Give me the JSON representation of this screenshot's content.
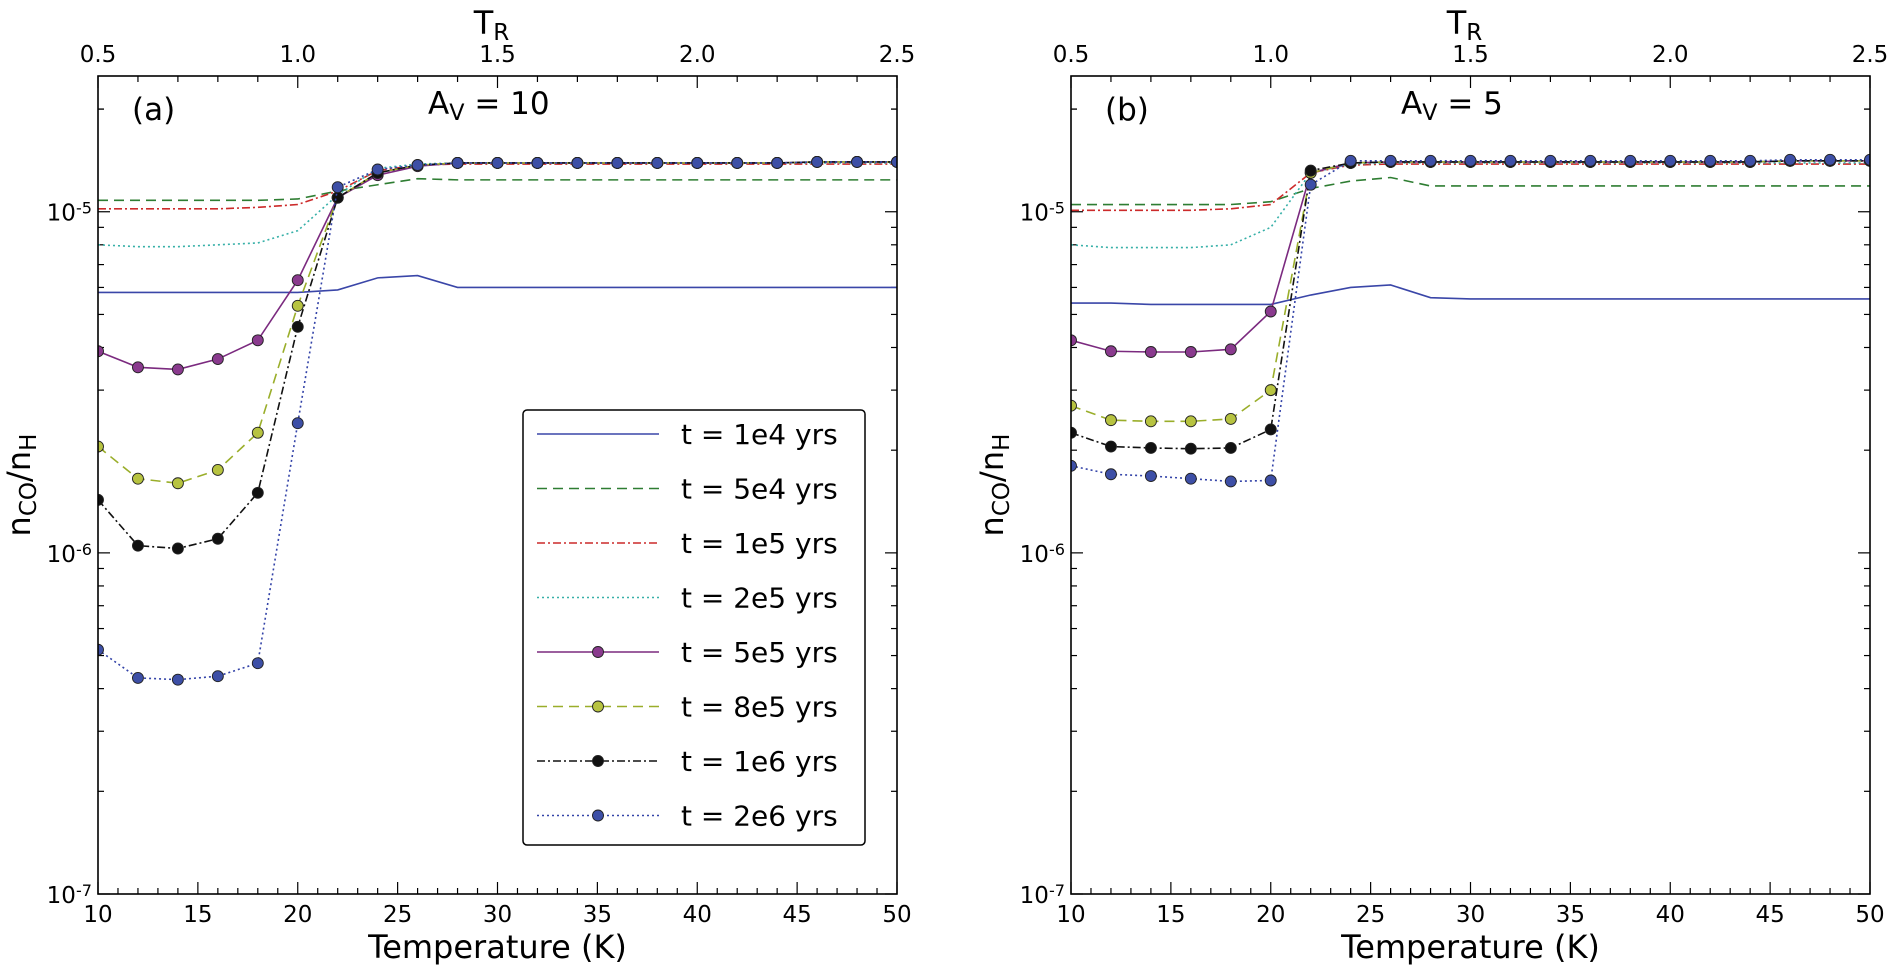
{
  "chart_data": [
    {
      "type": "line",
      "panel_label": "(a)",
      "title": "A",
      "title_sub": "V",
      "title_value": " = 10",
      "xlabel": "Temperature (K)",
      "ylabel_main1": "n",
      "ylabel_sub1": "CO",
      "ylabel_slash": "/n",
      "ylabel_sub2": "H",
      "top_xlabel": "T",
      "top_xlabel_sub": "R",
      "xlim": [
        10,
        50
      ],
      "ylim": [
        1e-07,
        2.5e-05
      ],
      "yscale": "log",
      "x_ticks": [
        10,
        15,
        20,
        25,
        30,
        35,
        40,
        45,
        50
      ],
      "x_tick_labels": [
        "10",
        "15",
        "20",
        "25",
        "30",
        "35",
        "40",
        "45",
        "50"
      ],
      "top_ticks": [
        0.5,
        1.0,
        1.5,
        2.0,
        2.5
      ],
      "top_tick_labels": [
        "0.5",
        "1.0",
        "1.5",
        "2.0",
        "2.5"
      ],
      "y_tick_labels": [
        {
          "value": 1e-05,
          "base": "10",
          "exp": "-5"
        },
        {
          "value": 1e-06,
          "base": "10",
          "exp": "-6"
        },
        {
          "value": 1e-07,
          "base": "10",
          "exp": "-7"
        }
      ],
      "legend": {
        "position": "lower-right"
      },
      "series": [
        {
          "name": "t = 1e4 yrs",
          "color": "#3a46a8",
          "dash": "",
          "marker": false,
          "x": [
            10,
            12,
            14,
            16,
            18,
            20,
            22,
            24,
            26,
            28,
            30,
            32,
            34,
            36,
            38,
            40,
            42,
            44,
            46,
            48,
            50
          ],
          "y": [
            5.8e-06,
            5.8e-06,
            5.8e-06,
            5.8e-06,
            5.8e-06,
            5.8e-06,
            5.9e-06,
            6.4e-06,
            6.5e-06,
            6e-06,
            6e-06,
            6e-06,
            6e-06,
            6e-06,
            6e-06,
            6e-06,
            6e-06,
            6e-06,
            6e-06,
            6e-06,
            6e-06
          ]
        },
        {
          "name": "t = 5e4 yrs",
          "color": "#2e7d32",
          "dash": "10,6",
          "marker": false,
          "x": [
            10,
            12,
            14,
            16,
            18,
            20,
            22,
            24,
            26,
            28,
            30,
            32,
            34,
            36,
            38,
            40,
            42,
            44,
            46,
            48,
            50
          ],
          "y": [
            1.08e-05,
            1.08e-05,
            1.08e-05,
            1.08e-05,
            1.08e-05,
            1.09e-05,
            1.15e-05,
            1.2e-05,
            1.25e-05,
            1.24e-05,
            1.24e-05,
            1.24e-05,
            1.24e-05,
            1.24e-05,
            1.24e-05,
            1.24e-05,
            1.24e-05,
            1.24e-05,
            1.24e-05,
            1.24e-05,
            1.24e-05
          ]
        },
        {
          "name": "t = 1e5 yrs",
          "color": "#cc2a2a",
          "dash": "8,3,2,3",
          "marker": false,
          "x": [
            10,
            12,
            14,
            16,
            18,
            20,
            22,
            24,
            26,
            28,
            30,
            32,
            34,
            36,
            38,
            40,
            42,
            44,
            46,
            48,
            50
          ],
          "y": [
            1.02e-05,
            1.02e-05,
            1.02e-05,
            1.02e-05,
            1.03e-05,
            1.05e-05,
            1.15e-05,
            1.32e-05,
            1.37e-05,
            1.38e-05,
            1.38e-05,
            1.38e-05,
            1.38e-05,
            1.38e-05,
            1.38e-05,
            1.38e-05,
            1.38e-05,
            1.38e-05,
            1.38e-05,
            1.38e-05,
            1.38e-05
          ]
        },
        {
          "name": "t = 2e5 yrs",
          "color": "#37b0a8",
          "dash": "2,3",
          "marker": false,
          "x": [
            10,
            12,
            14,
            16,
            18,
            20,
            22,
            24,
            26,
            28,
            30,
            32,
            34,
            36,
            38,
            40,
            42,
            44,
            46,
            48,
            50
          ],
          "y": [
            8e-06,
            7.9e-06,
            7.9e-06,
            8e-06,
            8.1e-06,
            8.8e-06,
            1.12e-05,
            1.34e-05,
            1.38e-05,
            1.39e-05,
            1.39e-05,
            1.39e-05,
            1.39e-05,
            1.39e-05,
            1.39e-05,
            1.39e-05,
            1.39e-05,
            1.39e-05,
            1.39e-05,
            1.39e-05,
            1.39e-05
          ]
        },
        {
          "name": "t = 5e5 yrs",
          "color": "#7b2a7f",
          "dash": "",
          "marker": true,
          "mfill": "#8a3a8e",
          "x": [
            10,
            12,
            14,
            16,
            18,
            20,
            22,
            24,
            26,
            28,
            30,
            32,
            34,
            36,
            38,
            40,
            42,
            44,
            46,
            48,
            50
          ],
          "y": [
            3.9e-06,
            3.5e-06,
            3.45e-06,
            3.7e-06,
            4.2e-06,
            6.3e-06,
            1.1e-05,
            1.28e-05,
            1.36e-05,
            1.39e-05,
            1.39e-05,
            1.39e-05,
            1.39e-05,
            1.39e-05,
            1.39e-05,
            1.39e-05,
            1.39e-05,
            1.39e-05,
            1.4e-05,
            1.4e-05,
            1.4e-05
          ]
        },
        {
          "name": "t = 8e5 yrs",
          "color": "#9aae2a",
          "dash": "10,6",
          "marker": true,
          "mfill": "#b7c340",
          "x": [
            10,
            12,
            14,
            16,
            18,
            20,
            22,
            24,
            26,
            28,
            30,
            32,
            34,
            36,
            38,
            40,
            42,
            44,
            46,
            48,
            50
          ],
          "y": [
            2.05e-06,
            1.65e-06,
            1.6e-06,
            1.75e-06,
            2.25e-06,
            5.3e-06,
            1.1e-05,
            1.3e-05,
            1.37e-05,
            1.39e-05,
            1.39e-05,
            1.39e-05,
            1.39e-05,
            1.39e-05,
            1.39e-05,
            1.39e-05,
            1.39e-05,
            1.39e-05,
            1.4e-05,
            1.4e-05,
            1.4e-05
          ]
        },
        {
          "name": "t = 1e6 yrs",
          "color": "#111111",
          "dash": "8,3,2,3",
          "marker": true,
          "mfill": "#111111",
          "x": [
            10,
            12,
            14,
            16,
            18,
            20,
            22,
            24,
            26,
            28,
            30,
            32,
            34,
            36,
            38,
            40,
            42,
            44,
            46,
            48,
            50
          ],
          "y": [
            1.43e-06,
            1.05e-06,
            1.03e-06,
            1.1e-06,
            1.5e-06,
            4.6e-06,
            1.1e-05,
            1.3e-05,
            1.37e-05,
            1.39e-05,
            1.39e-05,
            1.39e-05,
            1.39e-05,
            1.39e-05,
            1.39e-05,
            1.39e-05,
            1.39e-05,
            1.39e-05,
            1.4e-05,
            1.4e-05,
            1.4e-05
          ]
        },
        {
          "name": "t = 2e6 yrs",
          "color": "#3343a8",
          "dash": "2,3",
          "marker": true,
          "mfill": "#3d4fa6",
          "x": [
            10,
            12,
            14,
            16,
            18,
            20,
            22,
            24,
            26,
            28,
            30,
            32,
            34,
            36,
            38,
            40,
            42,
            44,
            46,
            48,
            50
          ],
          "y": [
            5.2e-07,
            4.3e-07,
            4.25e-07,
            4.35e-07,
            4.75e-07,
            2.4e-06,
            1.18e-05,
            1.33e-05,
            1.37e-05,
            1.39e-05,
            1.39e-05,
            1.39e-05,
            1.39e-05,
            1.39e-05,
            1.39e-05,
            1.39e-05,
            1.39e-05,
            1.39e-05,
            1.4e-05,
            1.4e-05,
            1.4e-05
          ]
        }
      ]
    },
    {
      "type": "line",
      "panel_label": "(b)",
      "title": "A",
      "title_sub": "V",
      "title_value": " = 5",
      "xlabel": "Temperature (K)",
      "ylabel_main1": "n",
      "ylabel_sub1": "CO",
      "ylabel_slash": "/n",
      "ylabel_sub2": "H",
      "top_xlabel": "T",
      "top_xlabel_sub": "R",
      "xlim": [
        10,
        50
      ],
      "ylim": [
        1e-07,
        2.5e-05
      ],
      "yscale": "log",
      "x_ticks": [
        10,
        15,
        20,
        25,
        30,
        35,
        40,
        45,
        50
      ],
      "x_tick_labels": [
        "10",
        "15",
        "20",
        "25",
        "30",
        "35",
        "40",
        "45",
        "50"
      ],
      "top_ticks": [
        0.5,
        1.0,
        1.5,
        2.0,
        2.5
      ],
      "top_tick_labels": [
        "0.5",
        "1.0",
        "1.5",
        "2.0",
        "2.5"
      ],
      "y_tick_labels": [
        {
          "value": 1e-05,
          "base": "10",
          "exp": "-5"
        },
        {
          "value": 1e-06,
          "base": "10",
          "exp": "-6"
        },
        {
          "value": 1e-07,
          "base": "10",
          "exp": "-7"
        }
      ],
      "series": [
        {
          "name": "t = 1e4 yrs",
          "color": "#3a46a8",
          "dash": "",
          "marker": false,
          "x": [
            10,
            12,
            14,
            16,
            18,
            20,
            22,
            24,
            26,
            28,
            30,
            32,
            34,
            36,
            38,
            40,
            42,
            44,
            46,
            48,
            50
          ],
          "y": [
            5.4e-06,
            5.4e-06,
            5.35e-06,
            5.35e-06,
            5.35e-06,
            5.35e-06,
            5.7e-06,
            6e-06,
            6.1e-06,
            5.6e-06,
            5.55e-06,
            5.55e-06,
            5.55e-06,
            5.55e-06,
            5.55e-06,
            5.55e-06,
            5.55e-06,
            5.55e-06,
            5.55e-06,
            5.55e-06,
            5.55e-06
          ]
        },
        {
          "name": "t = 5e4 yrs",
          "color": "#2e7d32",
          "dash": "10,6",
          "marker": false,
          "x": [
            10,
            12,
            14,
            16,
            18,
            20,
            22,
            24,
            26,
            28,
            30,
            32,
            34,
            36,
            38,
            40,
            42,
            44,
            46,
            48,
            50
          ],
          "y": [
            1.05e-05,
            1.05e-05,
            1.05e-05,
            1.05e-05,
            1.05e-05,
            1.07e-05,
            1.17e-05,
            1.23e-05,
            1.26e-05,
            1.19e-05,
            1.19e-05,
            1.19e-05,
            1.19e-05,
            1.19e-05,
            1.19e-05,
            1.19e-05,
            1.19e-05,
            1.19e-05,
            1.19e-05,
            1.19e-05,
            1.19e-05
          ]
        },
        {
          "name": "t = 1e5 yrs",
          "color": "#cc2a2a",
          "dash": "8,3,2,3",
          "marker": false,
          "x": [
            10,
            12,
            14,
            16,
            18,
            20,
            22,
            24,
            26,
            28,
            30,
            32,
            34,
            36,
            38,
            40,
            42,
            44,
            46,
            48,
            50
          ],
          "y": [
            1.01e-05,
            1.01e-05,
            1.01e-05,
            1.01e-05,
            1.02e-05,
            1.05e-05,
            1.3e-05,
            1.37e-05,
            1.38e-05,
            1.38e-05,
            1.38e-05,
            1.38e-05,
            1.38e-05,
            1.38e-05,
            1.38e-05,
            1.38e-05,
            1.38e-05,
            1.38e-05,
            1.38e-05,
            1.38e-05,
            1.38e-05
          ]
        },
        {
          "name": "t = 2e5 yrs",
          "color": "#37b0a8",
          "dash": "2,3",
          "marker": false,
          "x": [
            10,
            12,
            14,
            16,
            18,
            20,
            22,
            24,
            26,
            28,
            30,
            32,
            34,
            36,
            38,
            40,
            42,
            44,
            46,
            48,
            50
          ],
          "y": [
            8e-06,
            7.85e-06,
            7.85e-06,
            7.85e-06,
            8e-06,
            9e-06,
            1.3e-05,
            1.38e-05,
            1.39e-05,
            1.39e-05,
            1.39e-05,
            1.39e-05,
            1.39e-05,
            1.39e-05,
            1.39e-05,
            1.39e-05,
            1.39e-05,
            1.39e-05,
            1.39e-05,
            1.39e-05,
            1.39e-05
          ]
        },
        {
          "name": "t = 5e5 yrs",
          "color": "#7b2a7f",
          "dash": "",
          "marker": true,
          "mfill": "#8a3a8e",
          "x": [
            10,
            12,
            14,
            16,
            18,
            20,
            22,
            24,
            26,
            28,
            30,
            32,
            34,
            36,
            38,
            40,
            42,
            44,
            46,
            48,
            50
          ],
          "y": [
            4.2e-06,
            3.9e-06,
            3.88e-06,
            3.88e-06,
            3.95e-06,
            5.1e-06,
            1.3e-05,
            1.39e-05,
            1.4e-05,
            1.4e-05,
            1.4e-05,
            1.4e-05,
            1.4e-05,
            1.4e-05,
            1.4e-05,
            1.4e-05,
            1.4e-05,
            1.4e-05,
            1.41e-05,
            1.41e-05,
            1.41e-05
          ]
        },
        {
          "name": "t = 8e5 yrs",
          "color": "#9aae2a",
          "dash": "10,6",
          "marker": true,
          "mfill": "#b7c340",
          "x": [
            10,
            12,
            14,
            16,
            18,
            20,
            22,
            24,
            26,
            28,
            30,
            32,
            34,
            36,
            38,
            40,
            42,
            44,
            46,
            48,
            50
          ],
          "y": [
            2.7e-06,
            2.45e-06,
            2.43e-06,
            2.43e-06,
            2.47e-06,
            3e-06,
            1.3e-05,
            1.39e-05,
            1.4e-05,
            1.4e-05,
            1.4e-05,
            1.4e-05,
            1.4e-05,
            1.4e-05,
            1.4e-05,
            1.4e-05,
            1.4e-05,
            1.4e-05,
            1.41e-05,
            1.41e-05,
            1.41e-05
          ]
        },
        {
          "name": "t = 1e6 yrs",
          "color": "#111111",
          "dash": "8,3,2,3",
          "marker": true,
          "mfill": "#111111",
          "x": [
            10,
            12,
            14,
            16,
            18,
            20,
            22,
            24,
            26,
            28,
            30,
            32,
            34,
            36,
            38,
            40,
            42,
            44,
            46,
            48,
            50
          ],
          "y": [
            2.25e-06,
            2.05e-06,
            2.03e-06,
            2.02e-06,
            2.03e-06,
            2.3e-06,
            1.32e-05,
            1.39e-05,
            1.4e-05,
            1.4e-05,
            1.4e-05,
            1.4e-05,
            1.4e-05,
            1.4e-05,
            1.4e-05,
            1.4e-05,
            1.4e-05,
            1.4e-05,
            1.41e-05,
            1.41e-05,
            1.41e-05
          ]
        },
        {
          "name": "t = 2e6 yrs",
          "color": "#3343a8",
          "dash": "2,3",
          "marker": true,
          "mfill": "#3d4fa6",
          "x": [
            10,
            12,
            14,
            16,
            18,
            20,
            22,
            24,
            26,
            28,
            30,
            32,
            34,
            36,
            38,
            40,
            42,
            44,
            46,
            48,
            50
          ],
          "y": [
            1.8e-06,
            1.7e-06,
            1.68e-06,
            1.65e-06,
            1.62e-06,
            1.63e-06,
            1.2e-05,
            1.41e-05,
            1.41e-05,
            1.41e-05,
            1.41e-05,
            1.41e-05,
            1.41e-05,
            1.41e-05,
            1.41e-05,
            1.41e-05,
            1.41e-05,
            1.41e-05,
            1.42e-05,
            1.42e-05,
            1.42e-05
          ]
        }
      ]
    }
  ]
}
